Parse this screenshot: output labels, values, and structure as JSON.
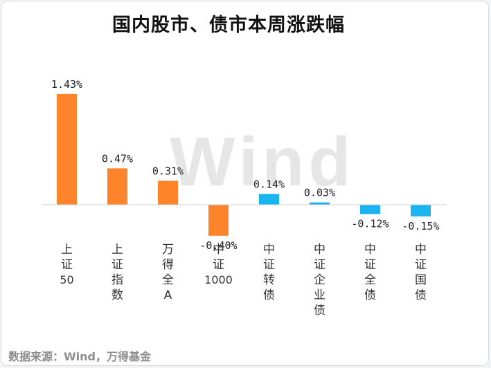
{
  "title": "国内股市、债市本周涨跌幅",
  "source": "数据来源：Wind，万得基金",
  "watermark": "Wind",
  "colors": {
    "positive_equity": "#fd842b",
    "negative_equity": "#fd842b",
    "bond": "#1ab4f0",
    "watermark": "#e6e6e6",
    "label": "#333333"
  },
  "chart_data": {
    "type": "bar",
    "categories": [
      "上证50",
      "上证指数",
      "万得全A",
      "中证1000",
      "中证转债",
      "中证企业债",
      "中证全债",
      "中证国债"
    ],
    "values": [
      1.43,
      0.47,
      0.31,
      -0.4,
      0.14,
      0.03,
      -0.12,
      -0.15
    ],
    "data_labels": [
      "1.43%",
      "0.47%",
      "0.31%",
      "-0.40%",
      "0.14%",
      "0.03%",
      "-0.12%",
      "-0.15%"
    ],
    "groups": [
      "equity",
      "equity",
      "equity",
      "equity",
      "bond",
      "bond",
      "bond",
      "bond"
    ],
    "unit": "%",
    "ylim": [
      -0.55,
      1.6
    ],
    "grid": false,
    "legend": "none"
  }
}
